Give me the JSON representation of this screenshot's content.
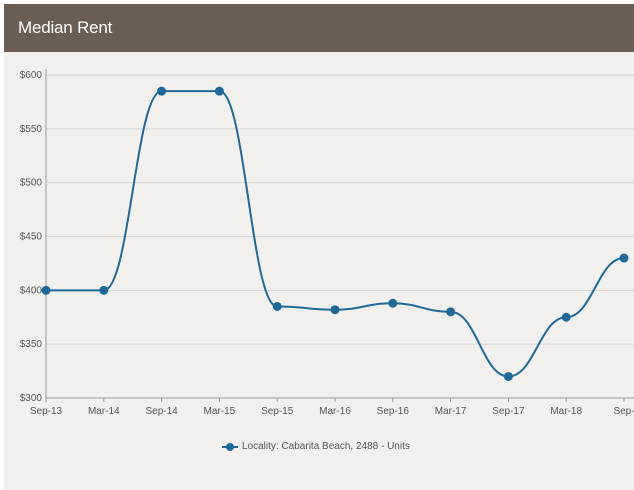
{
  "header": {
    "title": "Median Rent"
  },
  "colors": {
    "header_bg": "#6b5d52",
    "card_bg": "#f1f0ec",
    "series": "#1d6a9a",
    "grid": "#d6d6d6"
  },
  "chart_data": {
    "type": "line",
    "title": "Median Rent",
    "categories": [
      "Sep-13",
      "Mar-14",
      "Sep-14",
      "Mar-15",
      "Sep-15",
      "Mar-16",
      "Sep-16",
      "Mar-17",
      "Sep-17",
      "Mar-18",
      "Sep-"
    ],
    "y_ticks": [
      "$300",
      "$350",
      "$400",
      "$450",
      "$500",
      "$550",
      "$600"
    ],
    "ylim": [
      300,
      600
    ],
    "grid": true,
    "legend_position": "bottom-center",
    "series": [
      {
        "name": "Locality: Cabarita Beach, 2488 - Units",
        "values": [
          400,
          400,
          585,
          585,
          385,
          382,
          388,
          380,
          320,
          375,
          430
        ]
      }
    ]
  }
}
